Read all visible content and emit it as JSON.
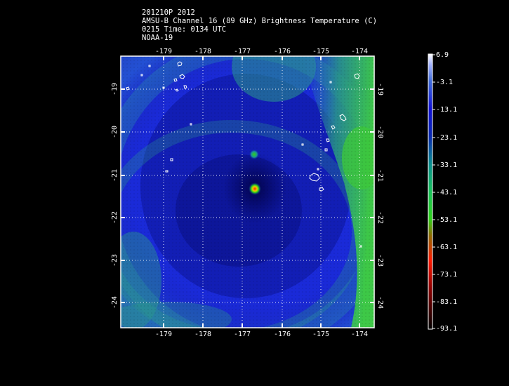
{
  "header": {
    "line1": "201210P 2012",
    "line2": "AMSU-B Channel 16 (89 GHz) Brightness Temperature (C)",
    "line3": "0215 Time: 0134 UTC",
    "line4": "NOAA-19"
  },
  "map": {
    "lon_ticks": [
      "-179",
      "-178",
      "-177",
      "-176",
      "-175",
      "-174"
    ],
    "lat_ticks": [
      "-19",
      "-20",
      "-21",
      "-22",
      "-23",
      "-24"
    ],
    "lon_range": [
      -180,
      -173.8
    ],
    "lat_range": [
      -18.1,
      -24.7
    ],
    "grid": true
  },
  "colorbar": {
    "labels": [
      "6.9",
      "-3.1",
      "-13.1",
      "-23.1",
      "-33.1",
      "-43.1",
      "-53.1",
      "-63.1",
      "-73.1",
      "-83.1",
      "-93.1"
    ],
    "colors_top_to_bottom": [
      "#ffffff",
      "#3f6bd9",
      "#1212d6",
      "#0a2ab0",
      "#0a8f8f",
      "#18c25a",
      "#2fd21a",
      "#8f6a00",
      "#ff1a00",
      "#8f0000",
      "#000000"
    ]
  },
  "colors": {
    "background": "#000000",
    "field_deep": "#0b0f7a",
    "field_mid": "#1a30d8",
    "field_warm": "#2a8a7a",
    "field_green": "#3ec83a",
    "coast": "#ffffff",
    "grid": "#ffffff"
  }
}
